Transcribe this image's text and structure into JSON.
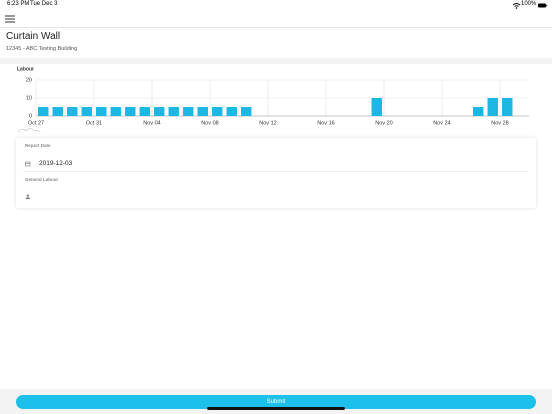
{
  "status_bar": {
    "time": "6:23 PM",
    "date": "Tue Dec 3",
    "battery": "100%"
  },
  "header": {
    "title": "Curtain Wall",
    "subtitle": "12345 - ABC Testing Building"
  },
  "chart_data": {
    "type": "bar",
    "y_label": "Labour",
    "color": "#1cb8e3",
    "categories": [
      "Oct 27",
      null,
      null,
      null,
      "Oct 31",
      null,
      null,
      null,
      "Nov 04",
      null,
      null,
      null,
      "Nov 08",
      null,
      null,
      null,
      "Nov 12",
      null,
      null,
      null,
      "Nov 16",
      null,
      null,
      null,
      "Nov 20",
      null,
      null,
      null,
      "Nov 24",
      null,
      null,
      null,
      "Nov 28",
      null
    ],
    "values": [
      5,
      5,
      5,
      5,
      5,
      5,
      5,
      5,
      5,
      5,
      5,
      5,
      5,
      5,
      5,
      0,
      0,
      0,
      0,
      0,
      0,
      0,
      0,
      10,
      0,
      0,
      0,
      0,
      0,
      0,
      5,
      10,
      10,
      0
    ],
    "ylim": [
      0,
      20
    ],
    "yticks": [
      0,
      10,
      20
    ],
    "grid": true
  },
  "form": {
    "report_date_label": "Report Date",
    "report_date": "2019-12-03",
    "general_labour_label": "General Labour"
  },
  "submit": "Submit"
}
